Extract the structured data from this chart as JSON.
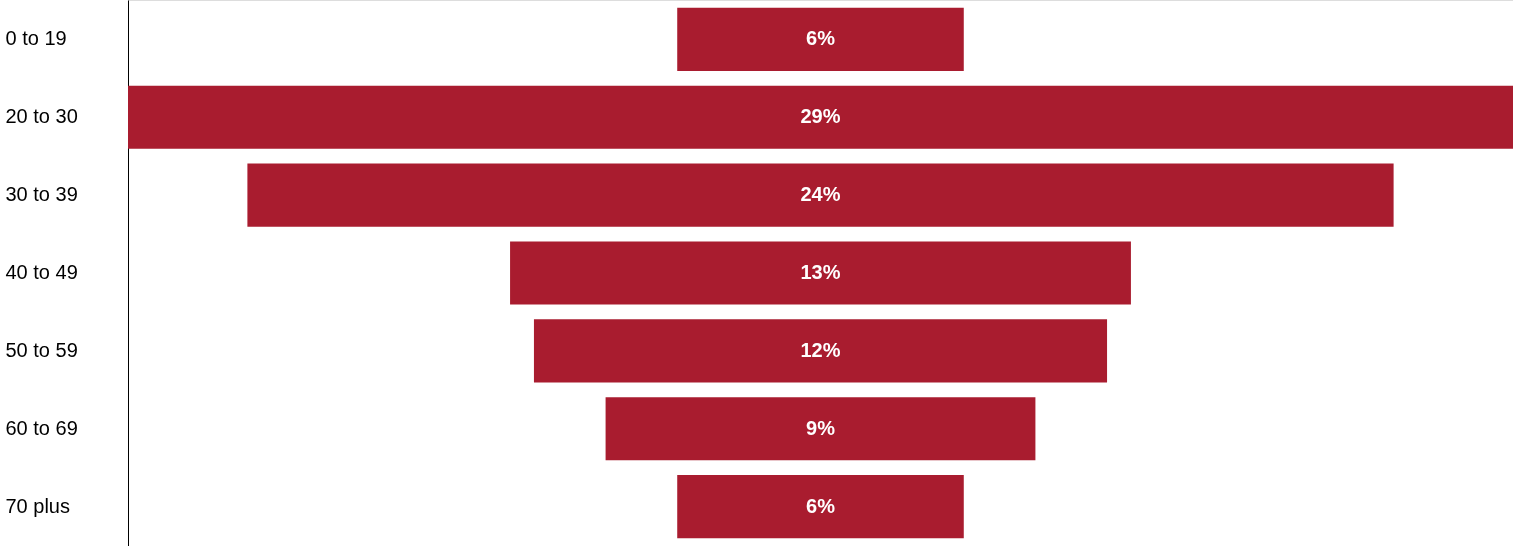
{
  "chart_data": {
    "type": "other",
    "categories": [
      "0 to 19",
      "20 to 30",
      "30 to 39",
      "40 to 49",
      "50 to 59",
      "60 to 69",
      "70 plus"
    ],
    "values": [
      6,
      29,
      24,
      13,
      12,
      9,
      6
    ],
    "value_labels": [
      "6%",
      "29%",
      "24%",
      "13%",
      "12%",
      "9%",
      "6%"
    ],
    "color": "#a91c2f"
  }
}
